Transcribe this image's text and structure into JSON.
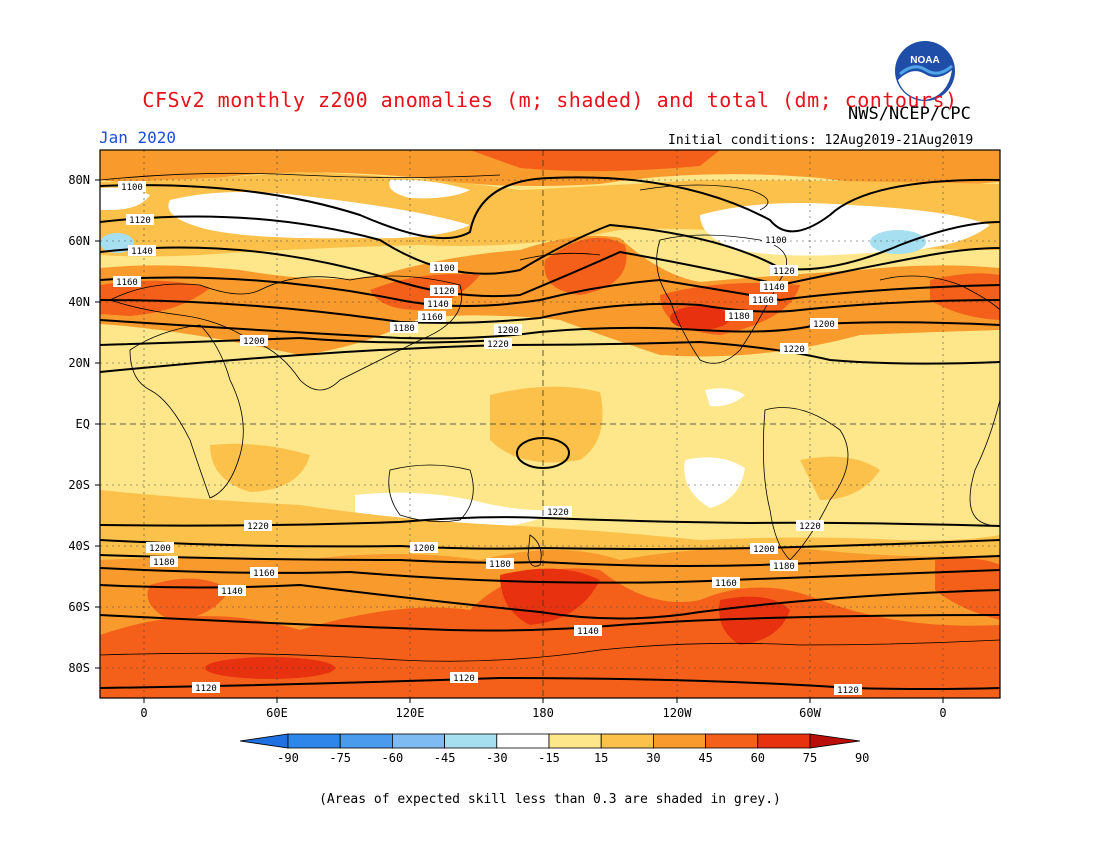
{
  "header": {
    "title": "CFSv2 monthly z200 anomalies (m; shaded) and total (dm; contours)",
    "agency": "NWS/NCEP/CPC",
    "valid_month": "Jan 2020",
    "initial_conditions": "Initial conditions: 12Aug2019-21Aug2019",
    "logo_text": "NOAA"
  },
  "axes": {
    "lat_ticks": [
      "80N",
      "60N",
      "40N",
      "20N",
      "EQ",
      "20S",
      "40S",
      "60S",
      "80S"
    ],
    "lon_ticks": [
      "0",
      "60E",
      "120E",
      "180",
      "120W",
      "60W",
      "0"
    ]
  },
  "colorbar": {
    "levels": [
      "-90",
      "-75",
      "-60",
      "-45",
      "-30",
      "-15",
      "15",
      "30",
      "45",
      "60",
      "75",
      "90"
    ],
    "colors": [
      "#1e6fe0",
      "#2f86ea",
      "#4a9aee",
      "#7dbbf2",
      "#a6dff0",
      "#ffffff",
      "#fde78a",
      "#fcc14a",
      "#f99a2c",
      "#f4601a",
      "#e8320f",
      "#b90e0a"
    ]
  },
  "contour_labels": {
    "c1100": "1100",
    "c1120": "1120",
    "c1140": "1140",
    "c1160": "1160",
    "c1180": "1180",
    "c1200": "1200",
    "c1220": "1220"
  },
  "footnote": "(Areas of expected skill less than 0.3 are shaded in grey.)",
  "map_colors": {
    "background": "#fde78a",
    "pale": "#fcc14a",
    "mid": "#f99a2c",
    "strong": "#f4601a",
    "very_strong": "#e8320f",
    "white": "#ffffff",
    "blue": "#a6dff0"
  }
}
